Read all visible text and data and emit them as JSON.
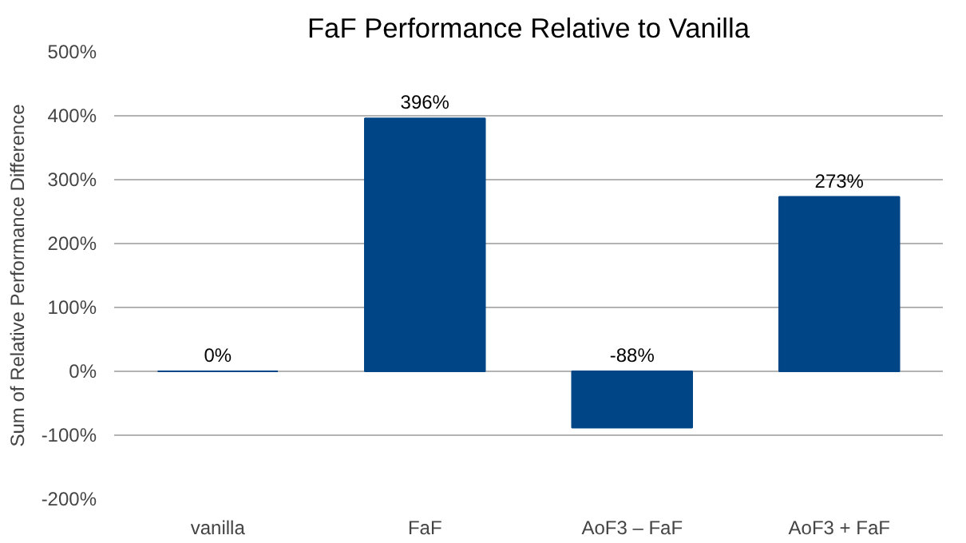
{
  "chart_data": {
    "type": "bar",
    "title": "FaF Performance Relative to Vanilla",
    "ylabel": "Sum of Relative Performance Difference",
    "categories": [
      "vanilla",
      "FaF",
      "AoF3 – FaF",
      "AoF3 + FaF"
    ],
    "values": [
      0,
      396,
      -88,
      273
    ],
    "value_labels": [
      "0%",
      "396%",
      "-88%",
      "273%"
    ],
    "color": "#004586",
    "ylim": [
      -200,
      500
    ],
    "yticks": [
      {
        "value": -200,
        "label": "-200%"
      },
      {
        "value": -100,
        "label": "-100%"
      },
      {
        "value": 0,
        "label": "0%"
      },
      {
        "value": 100,
        "label": "100%"
      },
      {
        "value": 200,
        "label": "200%"
      },
      {
        "value": 300,
        "label": "300%"
      },
      {
        "value": 400,
        "label": "400%"
      },
      {
        "value": 500,
        "label": "500%"
      }
    ],
    "grid": "y"
  }
}
